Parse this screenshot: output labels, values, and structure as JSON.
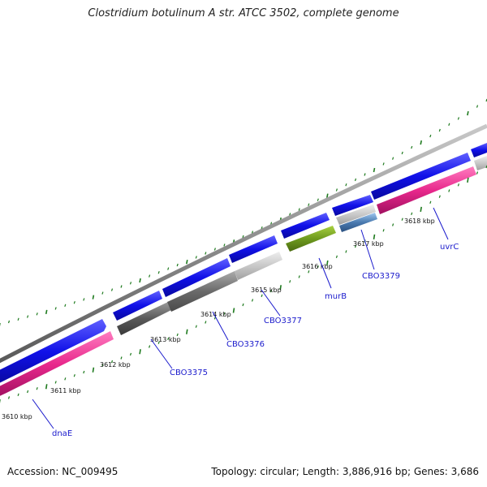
{
  "title": "Clostridium botulinum A str. ATCC 3502, complete genome",
  "accession_text": "Accession: NC_009495",
  "summary_text": "Topology: circular; Length: 3,886,916 bp; Genes: 3,686",
  "colors": {
    "forward_cds": "#1010e8",
    "reverse_cds": "#e8288c",
    "backbone": "#8c8c8c",
    "gene_label": "#1a1acc",
    "tick": "#1e7a1e"
  },
  "scale_labels": [
    {
      "kbp": 3610,
      "text": "3610 kbp"
    },
    {
      "kbp": 3611,
      "text": "3611 kbp"
    },
    {
      "kbp": 3612,
      "text": "3612 kbp"
    },
    {
      "kbp": 3613,
      "text": "3613 kbp"
    },
    {
      "kbp": 3614,
      "text": "3614 kbp"
    },
    {
      "kbp": 3615,
      "text": "3615 kbp"
    },
    {
      "kbp": 3616,
      "text": "3616 kbp"
    },
    {
      "kbp": 3617,
      "text": "3617 kbp"
    },
    {
      "kbp": 3618,
      "text": "3618 kbp"
    }
  ],
  "genes": [
    {
      "name": "dnaE",
      "strand": "reverse",
      "color": "#e8288c"
    },
    {
      "name": "CBO3375",
      "strand": "reverse",
      "color": "#5a5a5a"
    },
    {
      "name": "CBO3376",
      "strand": "reverse",
      "color": "#6a6a6a"
    },
    {
      "name": "CBO3377",
      "strand": "reverse",
      "color": "#c8c8c8"
    },
    {
      "name": "murB",
      "strand": "reverse",
      "color": "#6e9a1e"
    },
    {
      "name": "CBO3379",
      "strand": "reverse",
      "color": "#4a7ab0"
    },
    {
      "name": "uvrC",
      "strand": "reverse",
      "color": "#e8288c"
    }
  ]
}
